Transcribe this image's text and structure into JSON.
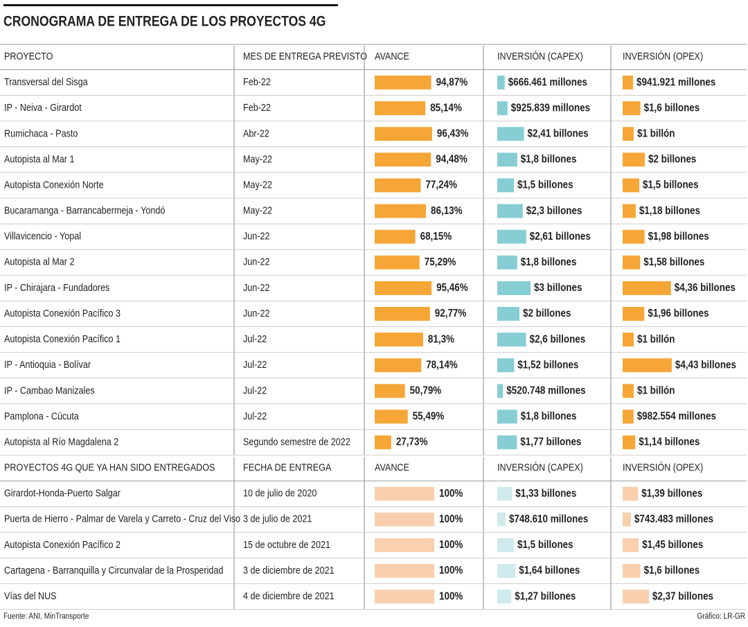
{
  "title": "CRONOGRAMA DE ENTREGA DE LOS PROYECTOS 4G",
  "colors": {
    "avance": "#f5a637",
    "capex": "#86cdd4",
    "opex": "#f5a637",
    "avance_delivered": "#f9cfae",
    "capex_delivered": "#cfeaec",
    "opex_delivered": "#f9cfae"
  },
  "table": {
    "header": [
      "PROYECTO",
      "MES DE ENTREGA PREVISTO",
      "AVANCE",
      "INVERSIÓN (CAPEX)",
      "INVERSIÓN (OPEX)"
    ],
    "rows": [
      {
        "proyecto": "Transversal del Sisga",
        "mes": "Feb-22",
        "avance": {
          "value": 94.87,
          "label": "94,87%"
        },
        "capex": {
          "value": 0.666461,
          "label": "$666.461 millones"
        },
        "opex": {
          "value": 0.941921,
          "label": "$941.921 millones"
        }
      },
      {
        "proyecto": "IP - Neiva - Girardot",
        "mes": "Feb-22",
        "avance": {
          "value": 85.14,
          "label": "85,14%"
        },
        "capex": {
          "value": 0.925839,
          "label": "$925.839 millones"
        },
        "opex": {
          "value": 1.6,
          "label": "$1,6 billones"
        }
      },
      {
        "proyecto": "Rumichaca - Pasto",
        "mes": "Abr-22",
        "avance": {
          "value": 96.43,
          "label": "96,43%"
        },
        "capex": {
          "value": 2.41,
          "label": "$2,41 billones"
        },
        "opex": {
          "value": 1,
          "label": "$1 billón"
        }
      },
      {
        "proyecto": "Autopista al Mar 1",
        "mes": "May-22",
        "avance": {
          "value": 94.48,
          "label": "94,48%"
        },
        "capex": {
          "value": 1.8,
          "label": "$1,8 billones"
        },
        "opex": {
          "value": 2,
          "label": "$2 billones"
        }
      },
      {
        "proyecto": "Autopista Conexión Norte",
        "mes": "May-22",
        "avance": {
          "value": 77.24,
          "label": "77,24%"
        },
        "capex": {
          "value": 1.5,
          "label": "$1,5 billones"
        },
        "opex": {
          "value": 1.5,
          "label": "$1,5 billones"
        }
      },
      {
        "proyecto": "Bucaramanga - Barrancabermeja - Yondó",
        "mes": "May-22",
        "avance": {
          "value": 86.13,
          "label": "86,13%"
        },
        "capex": {
          "value": 2.3,
          "label": "$2,3 billones"
        },
        "opex": {
          "value": 1.18,
          "label": "$1,18 billones"
        }
      },
      {
        "proyecto": "Villavicencio - Yopal",
        "mes": "Jun-22",
        "avance": {
          "value": 68.15,
          "label": "68,15%"
        },
        "capex": {
          "value": 2.61,
          "label": "$2,61 billones"
        },
        "opex": {
          "value": 1.98,
          "label": "$1,98 billones"
        }
      },
      {
        "proyecto": "Autopista al Mar 2",
        "mes": "Jun-22",
        "avance": {
          "value": 75.29,
          "label": "75,29%"
        },
        "capex": {
          "value": 1.8,
          "label": "$1,8 billones"
        },
        "opex": {
          "value": 1.58,
          "label": "$1,58 billones"
        }
      },
      {
        "proyecto": "IP - Chirajara - Fundadores",
        "mes": "Jun-22",
        "avance": {
          "value": 95.46,
          "label": "95,46%"
        },
        "capex": {
          "value": 3,
          "label": "$3 billones"
        },
        "opex": {
          "value": 4.36,
          "label": "$4,36 billones"
        }
      },
      {
        "proyecto": "Autopista Conexión Pacífico 3",
        "mes": "Jun-22",
        "avance": {
          "value": 92.77,
          "label": "92,77%"
        },
        "capex": {
          "value": 2,
          "label": "$2 billones"
        },
        "opex": {
          "value": 1.96,
          "label": "$1,96 billones"
        }
      },
      {
        "proyecto": "Autopista Conexión Pacífico 1",
        "mes": "Jul-22",
        "avance": {
          "value": 81.3,
          "label": "81,3%"
        },
        "capex": {
          "value": 2.6,
          "label": "$2,6 billones"
        },
        "opex": {
          "value": 1,
          "label": "$1 billón"
        }
      },
      {
        "proyecto": "IP - Antioquia - Bolívar",
        "mes": "Jul-22",
        "avance": {
          "value": 78.14,
          "label": "78,14%"
        },
        "capex": {
          "value": 1.52,
          "label": "$1,52 billones"
        },
        "opex": {
          "value": 4.43,
          "label": "$4,43 billones"
        }
      },
      {
        "proyecto": "IP - Cambao Manizales",
        "mes": "Jul-22",
        "avance": {
          "value": 50.79,
          "label": "50,79%"
        },
        "capex": {
          "value": 0.520748,
          "label": "$520.748 millones"
        },
        "opex": {
          "value": 1,
          "label": "$1 billón"
        }
      },
      {
        "proyecto": "Pamplona - Cúcuta",
        "mes": "Jul-22",
        "avance": {
          "value": 55.49,
          "label": "55,49%"
        },
        "capex": {
          "value": 1.8,
          "label": "$1,8 billones"
        },
        "opex": {
          "value": 0.982554,
          "label": "$982.554 millones"
        }
      },
      {
        "proyecto": "Autopista al Río Magdalena 2",
        "mes": "Segundo semestre de 2022",
        "avance": {
          "value": 27.73,
          "label": "27,73%"
        },
        "capex": {
          "value": 1.77,
          "label": "$1,77 billones"
        },
        "opex": {
          "value": 1.14,
          "label": "$1,14 billones"
        }
      }
    ]
  },
  "delivered": {
    "header": [
      "PROYECTOS 4G QUE YA HAN SIDO ENTREGADOS",
      "FECHA DE ENTREGA",
      "AVANCE",
      "INVERSIÓN (CAPEX)",
      "INVERSIÓN (OPEX)"
    ],
    "rows": [
      {
        "proyecto": "Girardot-Honda-Puerto Salgar",
        "mes": "10 de julio de 2020",
        "avance": {
          "value": 100,
          "label": "100%"
        },
        "capex": {
          "value": 1.33,
          "label": "$1,33 billones"
        },
        "opex": {
          "value": 1.39,
          "label": "$1,39 billones"
        }
      },
      {
        "proyecto": "Puerta de Hierro - Palmar de Varela y Carreto - Cruz del Viso",
        "mes": "3 de julio de 2021",
        "avance": {
          "value": 100,
          "label": "100%"
        },
        "capex": {
          "value": 0.74861,
          "label": "$748.610 millones"
        },
        "opex": {
          "value": 0.743483,
          "label": "$743.483 millones"
        }
      },
      {
        "proyecto": "Autopista Conexión Pacífico 2",
        "mes": "15 de octubre de 2021",
        "avance": {
          "value": 100,
          "label": "100%"
        },
        "capex": {
          "value": 1.5,
          "label": "$1,5 billones"
        },
        "opex": {
          "value": 1.45,
          "label": "$1,45 billones"
        }
      },
      {
        "proyecto": "Cartagena - Barranquilla y Circunvalar de la Prosperidad",
        "mes": "3 de diciembre de 2021",
        "avance": {
          "value": 100,
          "label": "100%"
        },
        "capex": {
          "value": 1.64,
          "label": "$1,64 billones"
        },
        "opex": {
          "value": 1.6,
          "label": "$1,6 billones"
        }
      },
      {
        "proyecto": "Vías del NUS",
        "mes": "4 de diciembre de 2021",
        "avance": {
          "value": 100,
          "label": "100%"
        },
        "capex": {
          "value": 1.27,
          "label": "$1,27 billones"
        },
        "opex": {
          "value": 2.37,
          "label": "$2,37 billones"
        }
      }
    ]
  },
  "source": "Fuente: ANI, MinTransporte",
  "credit": "Gráfico: LR-GR"
}
